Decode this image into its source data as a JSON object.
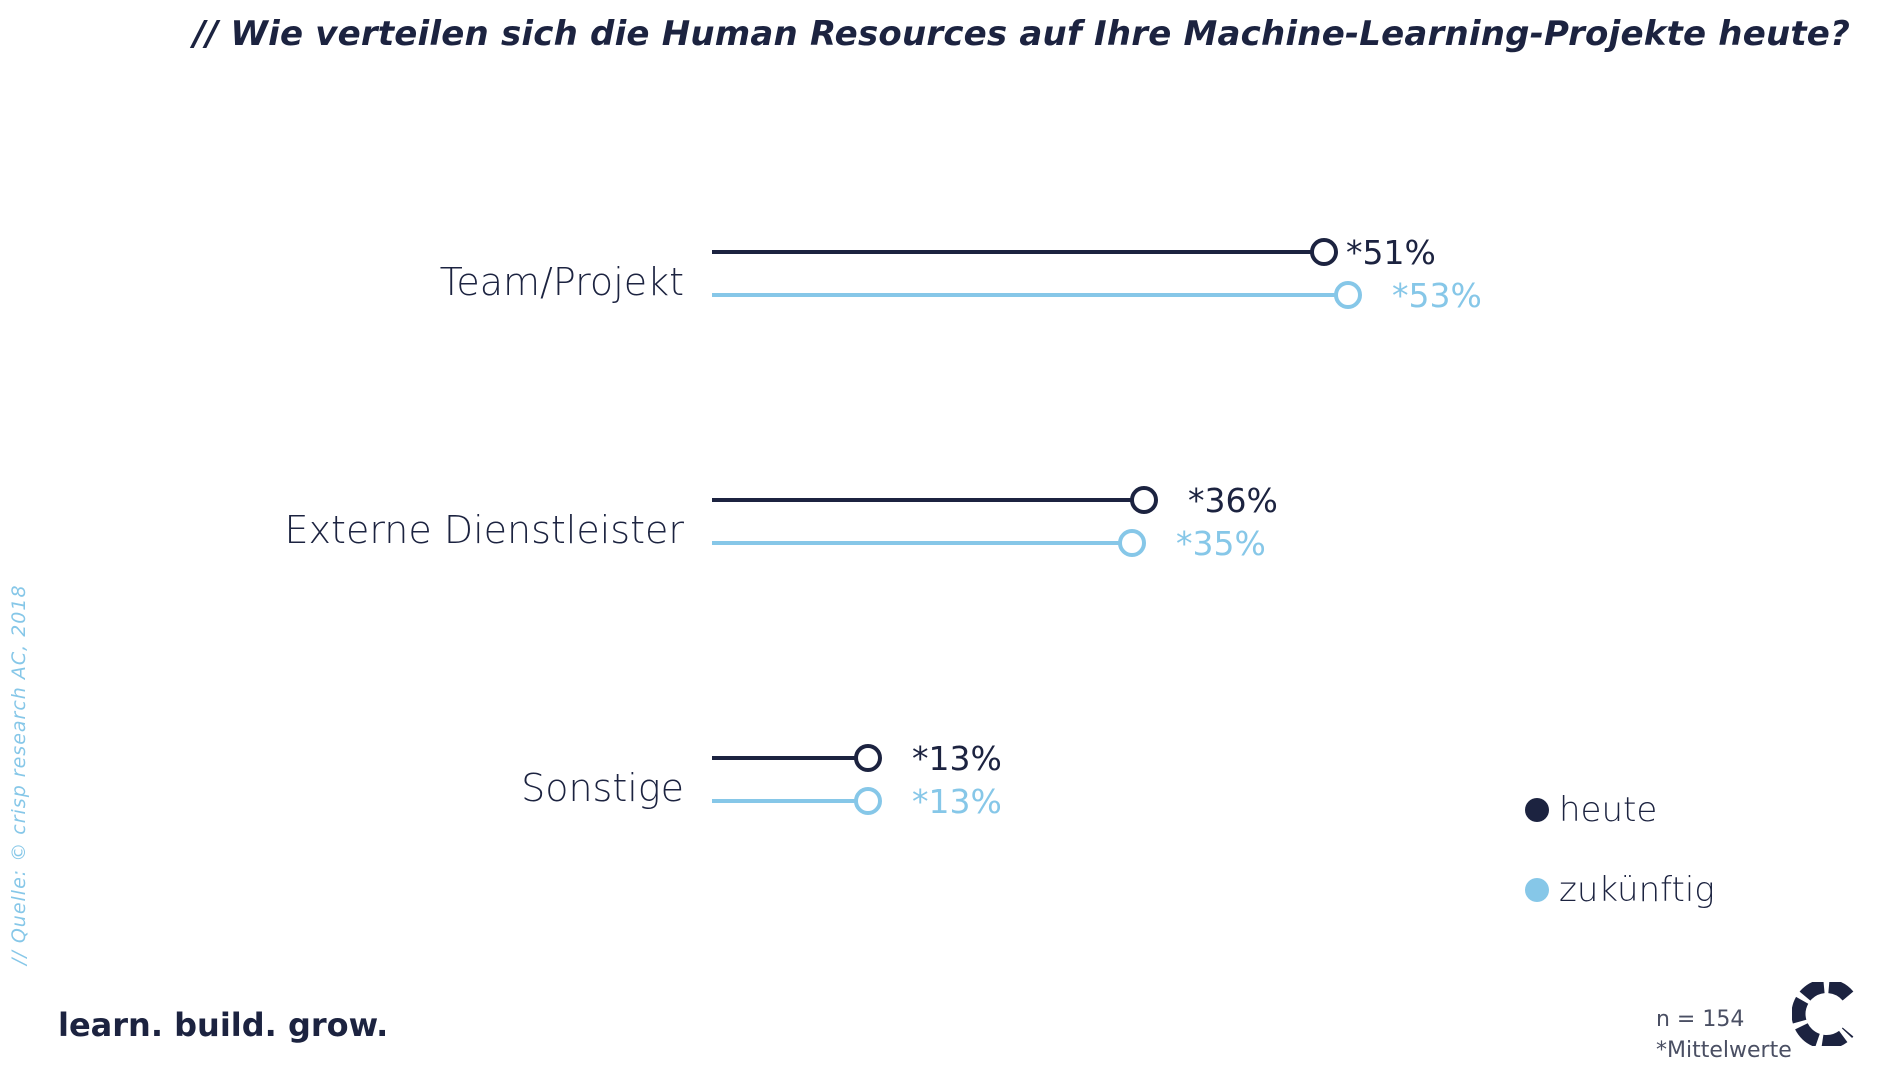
{
  "title": "// Wie verteilen sich die Human Resources auf Ihre Machine-Learning-Projekte heute?",
  "source": "// Quelle: © crisp research AC, 2018",
  "tagline": "learn. build. grow.",
  "sample_size": "n = 154",
  "footnote": "*Mittelwerte",
  "colors": {
    "heute": "#1c2340",
    "zukuenftig": "#86c7e8"
  },
  "legend": [
    {
      "label": "heute",
      "color": "#1c2340"
    },
    {
      "label": "zukünftig",
      "color": "#86c7e8"
    }
  ],
  "chart_data": {
    "type": "bar",
    "categories": [
      "Team/Projekt",
      "Externe Dienstleister",
      "Sonstige"
    ],
    "series": [
      {
        "name": "heute",
        "values": [
          51,
          36,
          13
        ],
        "labels": [
          "*51%",
          "*36%",
          "*13%"
        ]
      },
      {
        "name": "zukünftig",
        "values": [
          53,
          35,
          13
        ],
        "labels": [
          "*53%",
          "*35%",
          "*13%"
        ]
      }
    ],
    "unit": "%",
    "legend_position": "bottom-right",
    "grid": false
  }
}
